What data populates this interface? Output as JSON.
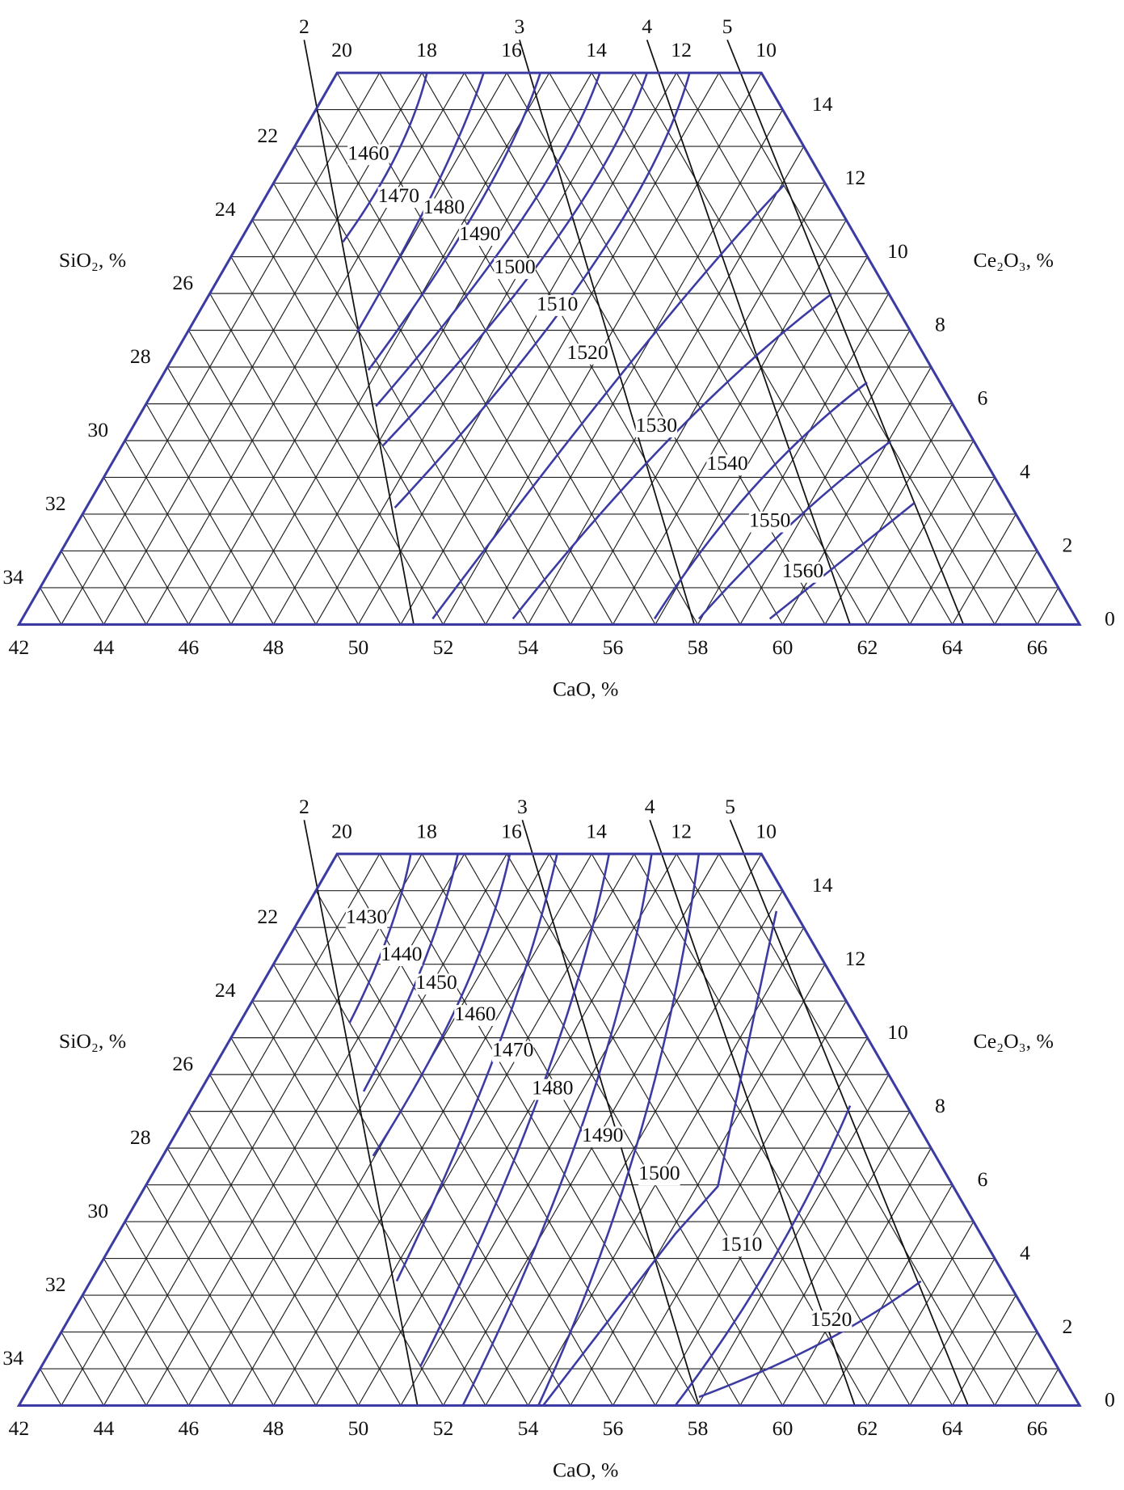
{
  "panels": [
    {
      "line_labels": [
        "2",
        "3",
        "4",
        "5"
      ],
      "cao_ticks": [
        42,
        44,
        46,
        48,
        50,
        52,
        54,
        56,
        58,
        60,
        62,
        64,
        66
      ],
      "sio2_top_ticks": [
        20,
        18,
        16,
        14,
        12,
        10
      ],
      "sio2_left_ticks": [
        22,
        24,
        26,
        28,
        30,
        32,
        34
      ],
      "ce2o3_ticks": [
        14,
        12,
        10,
        8,
        6,
        4,
        2,
        0
      ],
      "isotherms": [
        1460,
        1470,
        1480,
        1490,
        1500,
        1510,
        1520,
        1530,
        1540,
        1550,
        1560
      ],
      "x_title": "CaO, %",
      "left_title": "SiO₂, %",
      "right_title": "Ce₂O₃, %"
    },
    {
      "line_labels": [
        "2",
        "3",
        "4",
        "5"
      ],
      "cao_ticks": [
        42,
        44,
        46,
        48,
        50,
        52,
        54,
        56,
        58,
        60,
        62,
        64,
        66
      ],
      "sio2_top_ticks": [
        20,
        18,
        16,
        14,
        12,
        10
      ],
      "sio2_left_ticks": [
        22,
        24,
        26,
        28,
        30,
        32,
        34
      ],
      "ce2o3_ticks": [
        14,
        12,
        10,
        8,
        6,
        4,
        2,
        0
      ],
      "isotherms": [
        1430,
        1440,
        1450,
        1460,
        1470,
        1480,
        1490,
        1500,
        1510,
        1520
      ],
      "x_title": "CaO, %",
      "left_title": "SiO₂, %",
      "right_title": "Ce₂O₃, %"
    }
  ]
}
